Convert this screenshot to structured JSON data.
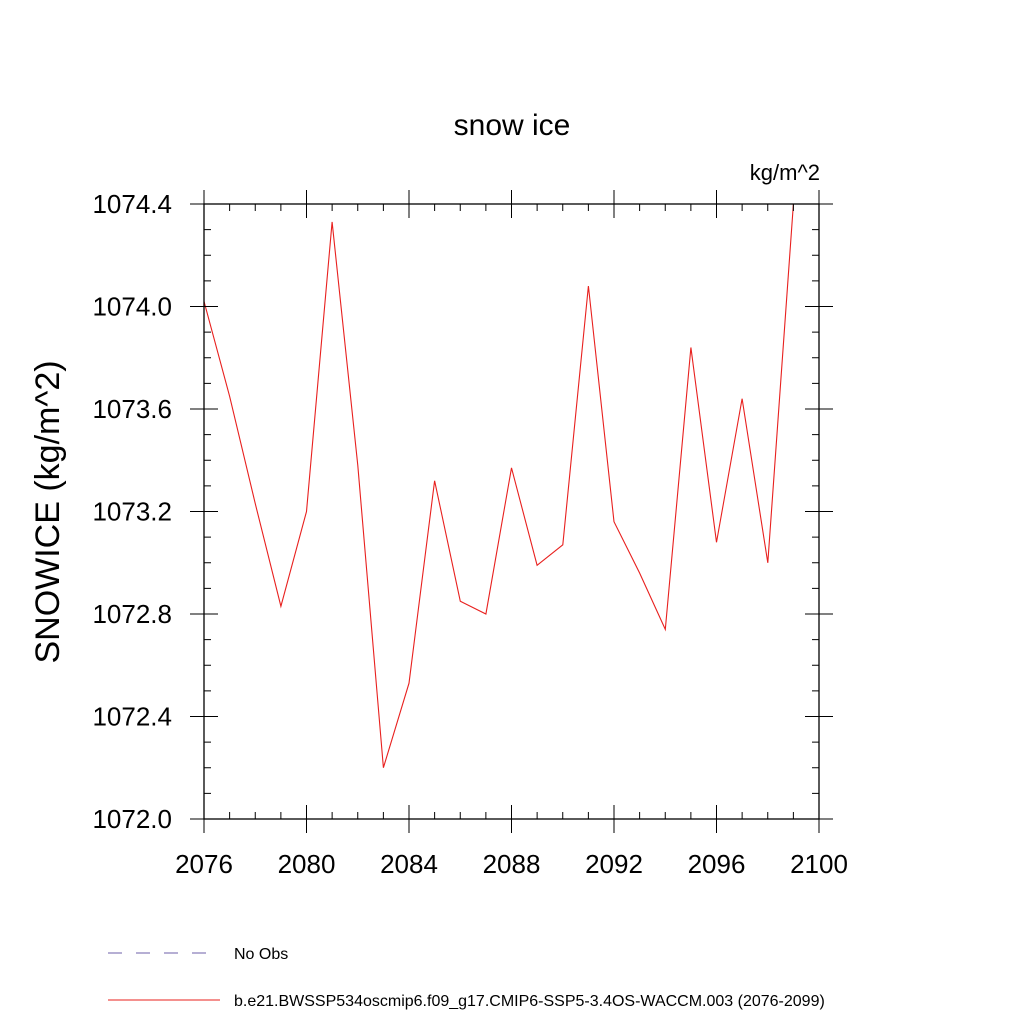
{
  "chart_data": {
    "type": "line",
    "title": "snow ice",
    "units": "kg/m^2",
    "ylabel": "SNOWICE  (kg/m^2)",
    "xlabel": "",
    "xlim": [
      2076,
      2100
    ],
    "ylim": [
      1072.0,
      1074.4
    ],
    "x_ticks": [
      2076,
      2080,
      2084,
      2088,
      2092,
      2096,
      2100
    ],
    "x_tick_labels": [
      "2076",
      "2080",
      "2084",
      "2088",
      "2092",
      "2096",
      "2100"
    ],
    "y_ticks": [
      1072.0,
      1072.4,
      1072.8,
      1073.2,
      1073.6,
      1074.0,
      1074.4
    ],
    "y_tick_labels": [
      "1072.0",
      "1072.4",
      "1072.8",
      "1073.2",
      "1073.6",
      "1074.0",
      "1074.4"
    ],
    "grid": false,
    "legend_placement": "bottom",
    "series": [
      {
        "name": "b.e21.BWSSP534oscmip6.f09_g17.CMIP6-SSP5-3.4OS-WACCM.003 (2076-2099)",
        "color": "#e8201e",
        "dash": "solid",
        "x": [
          2076,
          2077,
          2078,
          2079,
          2080,
          2081,
          2082,
          2083,
          2084,
          2085,
          2086,
          2087,
          2088,
          2089,
          2090,
          2091,
          2092,
          2093,
          2094,
          2095,
          2096,
          2097,
          2098,
          2099
        ],
        "y": [
          1074.02,
          1073.65,
          1073.23,
          1072.83,
          1073.2,
          1074.33,
          1073.38,
          1072.2,
          1072.53,
          1073.32,
          1072.85,
          1072.8,
          1073.37,
          1072.99,
          1073.07,
          1074.08,
          1073.16,
          1072.96,
          1072.74,
          1073.84,
          1073.08,
          1073.64,
          1073.0,
          1074.4
        ]
      },
      {
        "name": "No Obs",
        "color": "#6d5fa8",
        "dash": "dashed",
        "x": [],
        "y": []
      }
    ]
  }
}
